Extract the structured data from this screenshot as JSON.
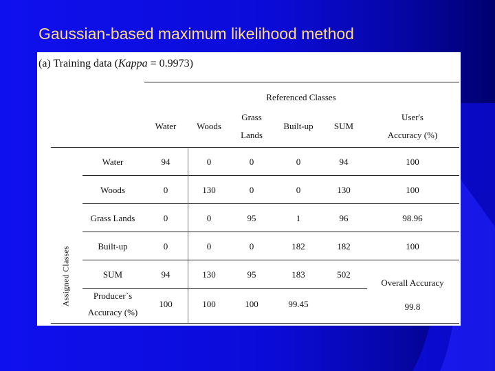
{
  "slide": {
    "title": "Gaussian-based maximum likelihood method",
    "colors": {
      "background": "#0b0bd8",
      "title": "#ffd98a",
      "panel": "#ffffff"
    }
  },
  "table": {
    "caption_prefix": "(a) Training data (",
    "caption_kappa": "Kappa",
    "caption_suffix": " = 0.9973)",
    "referenced_classes_header": "Referenced Classes",
    "columns": [
      "Water",
      "Woods",
      "Grass",
      "Lands",
      "Built-up",
      "SUM",
      "User's",
      "Accuracy (%)"
    ],
    "assigned_classes_label": "Assigned Classes",
    "rows": [
      {
        "label": "Water",
        "values": [
          "94",
          "0",
          "0",
          "0",
          "94",
          "100"
        ]
      },
      {
        "label": "Woods",
        "values": [
          "0",
          "130",
          "0",
          "0",
          "130",
          "100"
        ]
      },
      {
        "label": "Grass Lands",
        "values": [
          "0",
          "0",
          "95",
          "1",
          "96",
          "98.96"
        ]
      },
      {
        "label": "Built-up",
        "values": [
          "0",
          "0",
          "0",
          "182",
          "182",
          "100"
        ]
      }
    ],
    "sum_row": {
      "label": "SUM",
      "values": [
        "94",
        "130",
        "95",
        "183",
        "502"
      ]
    },
    "overall_accuracy_label": "Overall Accuracy",
    "overall_accuracy_value": "99.8",
    "producers_row": {
      "label_line1": "Producer`s",
      "label_line2": "Accuracy (%)",
      "values": [
        "100",
        "100",
        "100",
        "99.45"
      ]
    }
  }
}
